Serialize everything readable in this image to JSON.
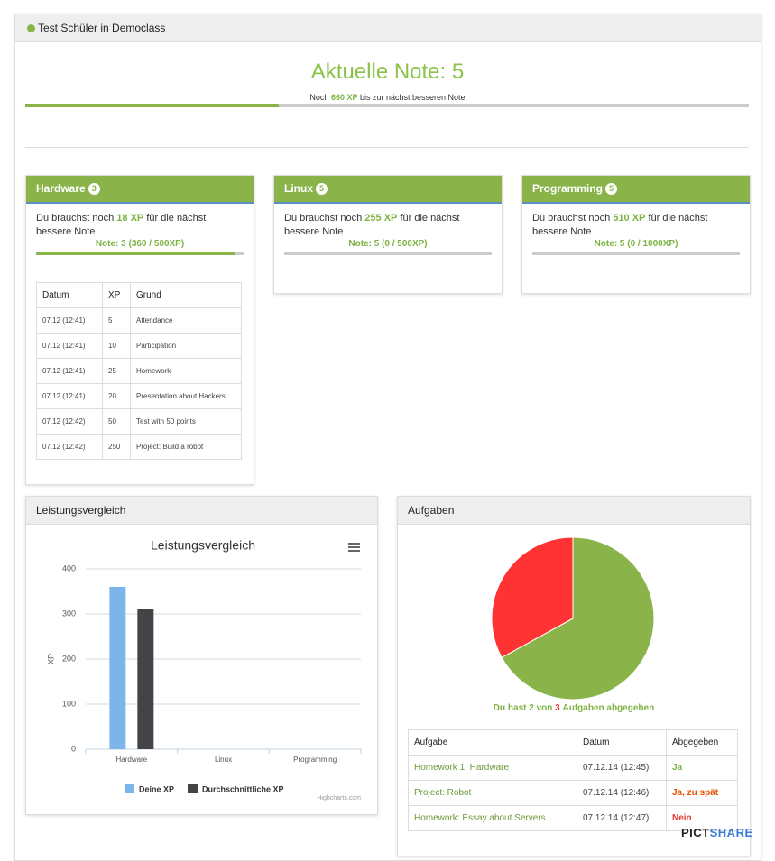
{
  "header": {
    "title": "Test Schüler in Democlass"
  },
  "grade": {
    "title": "Aktuelle Note: 5",
    "remaining_prefix": "Noch",
    "remaining_xp": "660 XP",
    "remaining_suffix": "bis zur nächst besseren Note",
    "progress": 35
  },
  "cards": [
    {
      "title": "Hardware",
      "badge": "3",
      "text_prefix": "Du brauchst noch",
      "xp": "18 XP",
      "text_suffix": "für die nächst bessere Note",
      "note": "Note: 3 (360 / 500XP)",
      "progress": 96,
      "table": {
        "columns": [
          "Datum",
          "XP",
          "Grund"
        ],
        "rows": [
          [
            "07.12 (12:41)",
            "5",
            "Attendance"
          ],
          [
            "07.12 (12:41)",
            "10",
            "Participation"
          ],
          [
            "07.12 (12:41)",
            "25",
            "Homework"
          ],
          [
            "07.12 (12:41)",
            "20",
            "Presentation about Hackers"
          ],
          [
            "07.12 (12:42)",
            "50",
            "Test with 50 points"
          ],
          [
            "07.12 (12:42)",
            "250",
            "Project: Build a robot"
          ]
        ]
      }
    },
    {
      "title": "Linux",
      "badge": "5",
      "text_prefix": "Du brauchst noch",
      "xp": "255 XP",
      "text_suffix": "für die nächst bessere Note",
      "note": "Note: 5 (0 / 500XP)",
      "progress": 0
    },
    {
      "title": "Programming",
      "badge": "5",
      "text_prefix": "Du brauchst noch",
      "xp": "510 XP",
      "text_suffix": "für die nächst bessere Note",
      "note": "Note: 5 (0 / 1000XP)",
      "progress": 0
    }
  ],
  "panels": {
    "comparison": "Leistungsvergleich",
    "tasks": "Aufgaben"
  },
  "chart_data": [
    {
      "type": "bar",
      "title": "Leistungsvergleich",
      "y_label": "XP",
      "credits": "Highcharts.com",
      "categories": [
        "Hardware",
        "Linux",
        "Programming"
      ],
      "series": [
        {
          "name": "Deine XP",
          "color": "#7cb5ec",
          "values": [
            360,
            0,
            0
          ]
        },
        {
          "name": "Durchschnittliche XP",
          "color": "#434348",
          "values": [
            310,
            0,
            0
          ]
        }
      ],
      "ylim": [
        0,
        400
      ],
      "yticks": [
        0,
        100,
        200,
        300,
        400
      ],
      "grid": true
    },
    {
      "type": "pie",
      "values": [
        67,
        33
      ],
      "colors": [
        "#8ab44a",
        "#ff3333"
      ]
    }
  ],
  "tasks": {
    "summary": [
      "Du hast",
      "2",
      "von",
      "3",
      "Aufgaben abgegeben"
    ],
    "table": {
      "columns": [
        "Aufgabe",
        "Datum",
        "Abgegeben"
      ],
      "rows": [
        [
          "Homework 1: Hardware",
          "07.12.14 (12:45)",
          "Ja"
        ],
        [
          "Project: Robot",
          "07.12.14 (12:46)",
          "Ja, zu spät"
        ],
        [
          "Homework: Essay about Servers",
          "07.12.14 (12:47)",
          "Nein"
        ]
      ]
    }
  },
  "watermark": [
    "PICT",
    "SHARE"
  ]
}
